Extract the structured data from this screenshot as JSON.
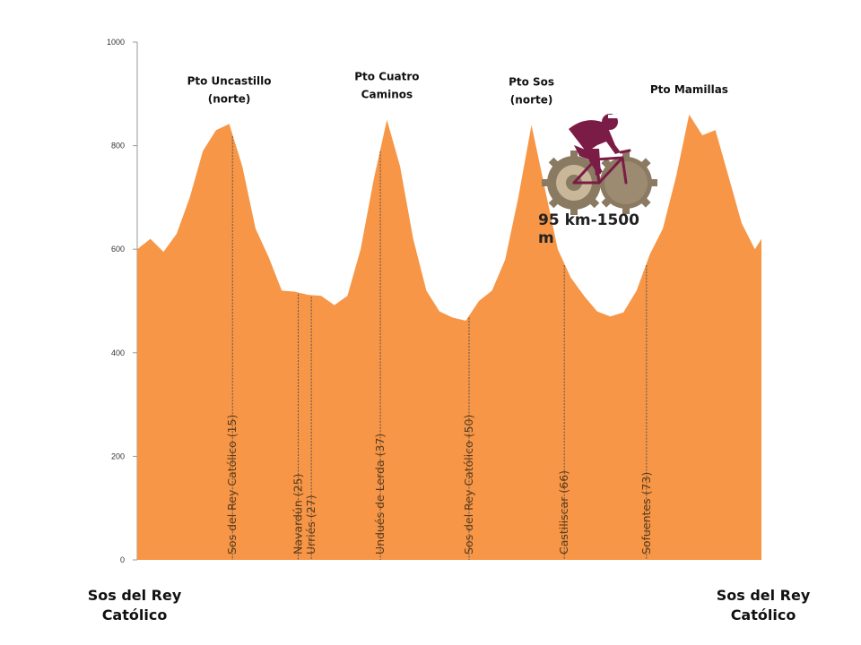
{
  "chart_data": {
    "type": "area",
    "title": "",
    "xlabel": "",
    "ylabel": "",
    "ylim": [
      0,
      1000
    ],
    "yticks": [
      0,
      200,
      400,
      600,
      800,
      1000
    ],
    "grid": false,
    "color": "#f79646",
    "x": [
      0,
      2,
      4,
      6,
      8,
      10,
      12,
      14,
      16,
      18,
      20,
      22,
      24,
      26,
      28,
      30,
      32,
      34,
      36,
      38,
      40,
      42,
      44,
      46,
      48,
      50,
      52,
      54,
      56,
      58,
      60,
      62,
      64,
      66,
      68,
      70,
      72,
      74,
      76,
      78,
      80,
      82,
      84,
      86,
      88,
      90,
      92,
      94,
      95
    ],
    "y": [
      600,
      620,
      595,
      630,
      700,
      790,
      830,
      842,
      760,
      640,
      585,
      520,
      518,
      512,
      510,
      492,
      510,
      600,
      735,
      850,
      760,
      620,
      520,
      480,
      468,
      462,
      500,
      520,
      580,
      700,
      840,
      720,
      600,
      545,
      510,
      480,
      470,
      478,
      520,
      590,
      640,
      740,
      860,
      820,
      830,
      740,
      650,
      600,
      620
    ],
    "peaks": [
      {
        "name": "Pto Uncastillo (norte)",
        "lines": [
          "Pto Uncastillo",
          "(norte)"
        ]
      },
      {
        "name": "Pto Cuatro Caminos",
        "lines": [
          "Pto Cuatro",
          "Caminos"
        ]
      },
      {
        "name": "Pto Sos (norte)",
        "lines": [
          "Pto Sos",
          "(norte)"
        ]
      },
      {
        "name": "Pto Mamillas",
        "lines": [
          "Pto Mamillas"
        ]
      }
    ],
    "waypoints": [
      {
        "label": "Sos del Rey Católico (15)",
        "km": 14.5,
        "elev": 645
      },
      {
        "label": "Navardún (25)",
        "km": 24.5,
        "elev": 515
      },
      {
        "label": "Urriés (27)",
        "km": 26.5,
        "elev": 540
      },
      {
        "label": "Undués de Lerda (37)",
        "km": 37.0,
        "elev": 640
      },
      {
        "label": "Sos del Rey Católico (50)",
        "km": 50.5,
        "elev": 640
      },
      {
        "label": "Castiliscar (66)",
        "km": 65.0,
        "elev": 520
      },
      {
        "label": "Sofuentes (73)",
        "km": 77.5,
        "elev": 600
      }
    ]
  },
  "route": {
    "start": "Sos del Rey Católico",
    "end": "Sos del Rey Católico",
    "summary": "95 km-1500 m"
  },
  "graphics": {
    "icon": "cyclist-on-gears-icon",
    "cyclist_color": "#7b1c47",
    "gear_color": "#8a7a62"
  }
}
